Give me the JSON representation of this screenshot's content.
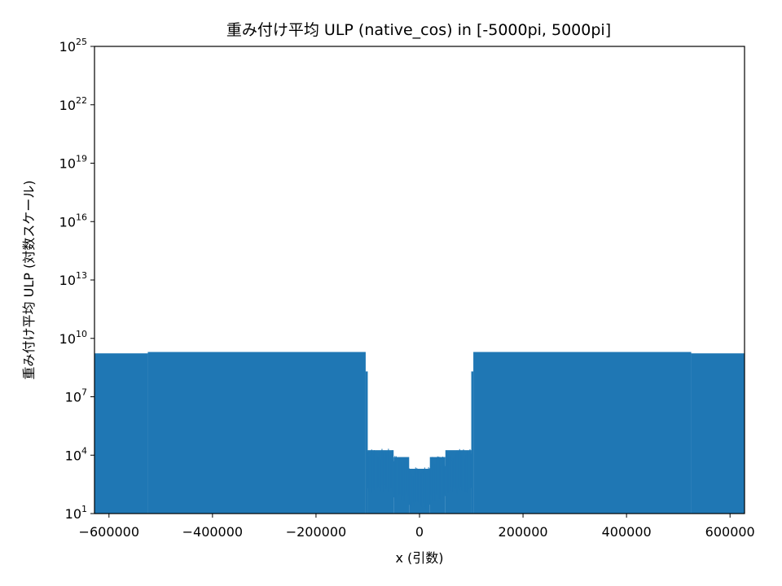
{
  "chart_data": {
    "type": "bar",
    "title": "重み付け平均 ULP (native_cos) in [-5000pi, 5000pi]",
    "xlabel": "x (引数)",
    "ylabel": "重み付け平均 ULP (対数スケール)",
    "xlim": [
      -628000,
      628000
    ],
    "ylim": [
      10,
      1e+25
    ],
    "yscale": "log",
    "grid": false,
    "color": "#1f77b4",
    "x_ticks": [
      -600000,
      -400000,
      -200000,
      0,
      200000,
      400000,
      600000
    ],
    "x_tick_labels": [
      "−600000",
      "−400000",
      "−200000",
      "0",
      "200000",
      "400000",
      "600000"
    ],
    "y_ticks": [
      {
        "base": "10",
        "exp": "1",
        "value": 10.0
      },
      {
        "base": "10",
        "exp": "4",
        "value": 10000.0
      },
      {
        "base": "10",
        "exp": "7",
        "value": 10000000.0
      },
      {
        "base": "10",
        "exp": "10",
        "value": 10000000000.0
      },
      {
        "base": "10",
        "exp": "13",
        "value": 10000000000000.0
      },
      {
        "base": "10",
        "exp": "16",
        "value": 1e+16
      },
      {
        "base": "10",
        "exp": "19",
        "value": 1e+19
      },
      {
        "base": "10",
        "exp": "22",
        "value": 1e+22
      },
      {
        "base": "10",
        "exp": "25",
        "value": 1e+25
      }
    ],
    "series": [
      {
        "x_ranges": [
          {
            "x0": -628000,
            "x1": -525000,
            "y": 1700000000.0
          },
          {
            "x0": -525000,
            "x1": -104000,
            "y": 2000000000.0
          },
          {
            "x0": -104000,
            "x1": -100000,
            "y": 200000000.0
          },
          {
            "x0": -100000,
            "x1": -50000,
            "y": 18000.0,
            "low": 100.0
          },
          {
            "x0": -50000,
            "x1": -20000,
            "y": 8000.0,
            "low": 40.0
          },
          {
            "x0": -20000,
            "x1": 20000,
            "y": 2000.0,
            "low": 15.0
          },
          {
            "x0": 20000,
            "x1": 50000,
            "y": 8000.0,
            "low": 40.0
          },
          {
            "x0": 50000,
            "x1": 100000,
            "y": 18000.0,
            "low": 100.0
          },
          {
            "x0": 100000,
            "x1": 104000,
            "y": 200000000.0
          },
          {
            "x0": 104000,
            "x1": 525000,
            "y": 2000000000.0
          },
          {
            "x0": 525000,
            "x1": 628000,
            "y": 1700000000.0
          }
        ]
      }
    ]
  }
}
